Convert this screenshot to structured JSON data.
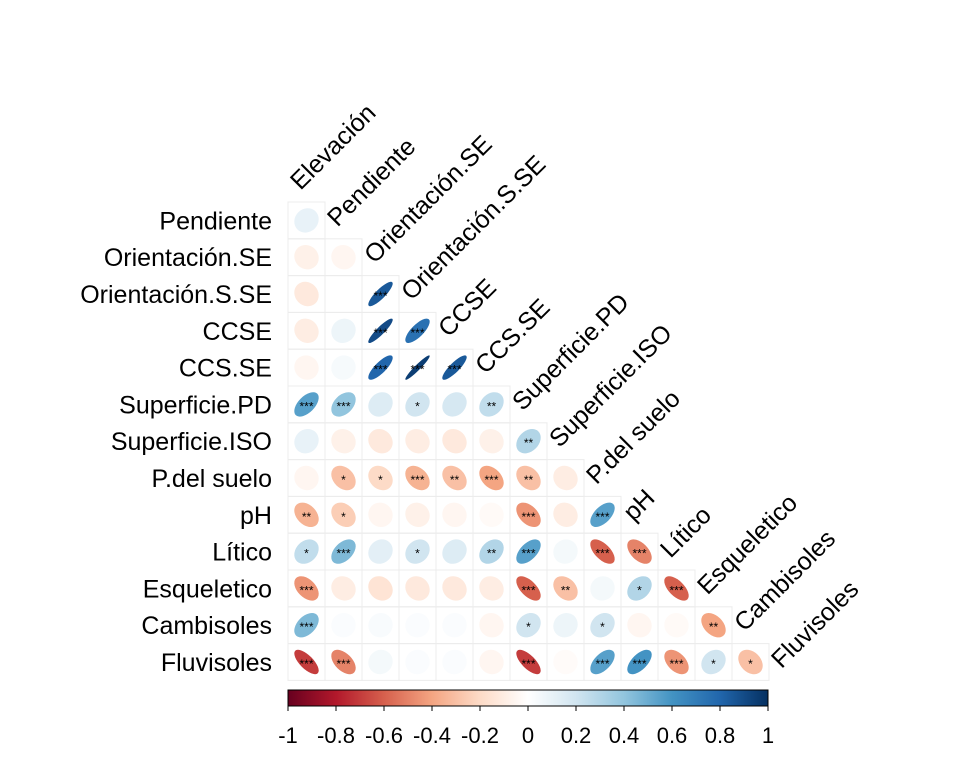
{
  "chart_data": {
    "type": "heatmap",
    "variables": [
      "Elevación",
      "Pendiente",
      "Orientación.SE",
      "Orientación.S.SE",
      "CCSE",
      "CCS.SE",
      "Superficie.PD",
      "Superficie.ISO",
      "P.del suelo",
      "pH",
      "Lítico",
      "Esqueletico",
      "Cambisoles",
      "Fluvisoles"
    ],
    "cells": [
      {
        "row": "Pendiente",
        "col": "Elevación",
        "r": 0.1,
        "sig": ""
      },
      {
        "row": "Orientación.SE",
        "col": "Elevación",
        "r": -0.08,
        "sig": ""
      },
      {
        "row": "Orientación.SE",
        "col": "Pendiente",
        "r": -0.05,
        "sig": ""
      },
      {
        "row": "Orientación.S.SE",
        "col": "Elevación",
        "r": -0.12,
        "sig": ""
      },
      {
        "row": "Orientación.S.SE",
        "col": "Pendiente",
        "r": 0.0,
        "sig": ""
      },
      {
        "row": "Orientación.S.SE",
        "col": "Orientación.SE",
        "r": 0.85,
        "sig": "***"
      },
      {
        "row": "CCSE",
        "col": "Elevación",
        "r": -0.1,
        "sig": ""
      },
      {
        "row": "CCSE",
        "col": "Pendiente",
        "r": 0.08,
        "sig": ""
      },
      {
        "row": "CCSE",
        "col": "Orientación.SE",
        "r": 0.9,
        "sig": "***"
      },
      {
        "row": "CCSE",
        "col": "Orientación.S.SE",
        "r": 0.75,
        "sig": "***"
      },
      {
        "row": "CCS.SE",
        "col": "Elevación",
        "r": -0.05,
        "sig": ""
      },
      {
        "row": "CCS.SE",
        "col": "Pendiente",
        "r": 0.04,
        "sig": ""
      },
      {
        "row": "CCS.SE",
        "col": "Orientación.SE",
        "r": 0.8,
        "sig": "***"
      },
      {
        "row": "CCS.SE",
        "col": "Orientación.S.SE",
        "r": 0.95,
        "sig": "***"
      },
      {
        "row": "CCS.SE",
        "col": "CCSE",
        "r": 0.85,
        "sig": "***"
      },
      {
        "row": "Superficie.PD",
        "col": "Elevación",
        "r": 0.55,
        "sig": "***"
      },
      {
        "row": "Superficie.PD",
        "col": "Pendiente",
        "r": 0.4,
        "sig": "***"
      },
      {
        "row": "Superficie.PD",
        "col": "Orientación.SE",
        "r": 0.15,
        "sig": ""
      },
      {
        "row": "Superficie.PD",
        "col": "Orientación.S.SE",
        "r": 0.2,
        "sig": "*"
      },
      {
        "row": "Superficie.PD",
        "col": "CCSE",
        "r": 0.18,
        "sig": ""
      },
      {
        "row": "Superficie.PD",
        "col": "CCS.SE",
        "r": 0.25,
        "sig": "**"
      },
      {
        "row": "Superficie.ISO",
        "col": "Elevación",
        "r": 0.1,
        "sig": ""
      },
      {
        "row": "Superficie.ISO",
        "col": "Pendiente",
        "r": -0.08,
        "sig": ""
      },
      {
        "row": "Superficie.ISO",
        "col": "Orientación.SE",
        "r": -0.12,
        "sig": ""
      },
      {
        "row": "Superficie.ISO",
        "col": "Orientación.S.SE",
        "r": -0.1,
        "sig": ""
      },
      {
        "row": "Superficie.ISO",
        "col": "CCSE",
        "r": -0.12,
        "sig": ""
      },
      {
        "row": "Superficie.ISO",
        "col": "CCS.SE",
        "r": -0.08,
        "sig": ""
      },
      {
        "row": "Superficie.ISO",
        "col": "Superficie.PD",
        "r": 0.3,
        "sig": "**"
      },
      {
        "row": "P.del suelo",
        "col": "Elevación",
        "r": -0.05,
        "sig": ""
      },
      {
        "row": "P.del suelo",
        "col": "Pendiente",
        "r": -0.3,
        "sig": "*"
      },
      {
        "row": "P.del suelo",
        "col": "Orientación.SE",
        "r": -0.2,
        "sig": "*"
      },
      {
        "row": "P.del suelo",
        "col": "Orientación.S.SE",
        "r": -0.35,
        "sig": "***"
      },
      {
        "row": "P.del suelo",
        "col": "CCSE",
        "r": -0.3,
        "sig": "**"
      },
      {
        "row": "P.del suelo",
        "col": "CCS.SE",
        "r": -0.4,
        "sig": "***"
      },
      {
        "row": "P.del suelo",
        "col": "Superficie.PD",
        "r": -0.3,
        "sig": "**"
      },
      {
        "row": "P.del suelo",
        "col": "Superficie.ISO",
        "r": -0.1,
        "sig": ""
      },
      {
        "row": "pH",
        "col": "Elevación",
        "r": -0.35,
        "sig": "**"
      },
      {
        "row": "pH",
        "col": "Pendiente",
        "r": -0.25,
        "sig": "*"
      },
      {
        "row": "pH",
        "col": "Orientación.SE",
        "r": -0.05,
        "sig": ""
      },
      {
        "row": "pH",
        "col": "Orientación.S.SE",
        "r": -0.08,
        "sig": ""
      },
      {
        "row": "pH",
        "col": "CCSE",
        "r": -0.05,
        "sig": ""
      },
      {
        "row": "pH",
        "col": "CCS.SE",
        "r": -0.03,
        "sig": ""
      },
      {
        "row": "pH",
        "col": "Superficie.PD",
        "r": -0.45,
        "sig": "***"
      },
      {
        "row": "pH",
        "col": "Superficie.ISO",
        "r": -0.1,
        "sig": ""
      },
      {
        "row": "pH",
        "col": "P.del suelo",
        "r": 0.55,
        "sig": "***"
      },
      {
        "row": "Lítico",
        "col": "Elevación",
        "r": 0.25,
        "sig": "*"
      },
      {
        "row": "Lítico",
        "col": "Pendiente",
        "r": 0.45,
        "sig": "***"
      },
      {
        "row": "Lítico",
        "col": "Orientación.SE",
        "r": 0.12,
        "sig": ""
      },
      {
        "row": "Lítico",
        "col": "Orientación.S.SE",
        "r": 0.2,
        "sig": "*"
      },
      {
        "row": "Lítico",
        "col": "CCSE",
        "r": 0.15,
        "sig": ""
      },
      {
        "row": "Lítico",
        "col": "CCS.SE",
        "r": 0.3,
        "sig": "**"
      },
      {
        "row": "Lítico",
        "col": "Superficie.PD",
        "r": 0.55,
        "sig": "***"
      },
      {
        "row": "Lítico",
        "col": "Superficie.ISO",
        "r": 0.05,
        "sig": ""
      },
      {
        "row": "Lítico",
        "col": "P.del suelo",
        "r": -0.6,
        "sig": "***"
      },
      {
        "row": "Lítico",
        "col": "pH",
        "r": -0.5,
        "sig": "***"
      },
      {
        "row": "Esqueletico",
        "col": "Elevación",
        "r": -0.45,
        "sig": "***"
      },
      {
        "row": "Esqueletico",
        "col": "Pendiente",
        "r": -0.1,
        "sig": ""
      },
      {
        "row": "Esqueletico",
        "col": "Orientación.SE",
        "r": -0.15,
        "sig": ""
      },
      {
        "row": "Esqueletico",
        "col": "Orientación.S.SE",
        "r": -0.12,
        "sig": ""
      },
      {
        "row": "Esqueletico",
        "col": "CCSE",
        "r": -0.12,
        "sig": ""
      },
      {
        "row": "Esqueletico",
        "col": "CCS.SE",
        "r": -0.1,
        "sig": ""
      },
      {
        "row": "Esqueletico",
        "col": "Superficie.PD",
        "r": -0.6,
        "sig": "***"
      },
      {
        "row": "Esqueletico",
        "col": "Superficie.ISO",
        "r": -0.3,
        "sig": "**"
      },
      {
        "row": "Esqueletico",
        "col": "P.del suelo",
        "r": 0.05,
        "sig": ""
      },
      {
        "row": "Esqueletico",
        "col": "pH",
        "r": 0.3,
        "sig": "*"
      },
      {
        "row": "Esqueletico",
        "col": "Lítico",
        "r": -0.6,
        "sig": "***"
      },
      {
        "row": "Cambisoles",
        "col": "Elevación",
        "r": 0.45,
        "sig": "***"
      },
      {
        "row": "Cambisoles",
        "col": "Pendiente",
        "r": 0.02,
        "sig": ""
      },
      {
        "row": "Cambisoles",
        "col": "Orientación.SE",
        "r": 0.03,
        "sig": ""
      },
      {
        "row": "Cambisoles",
        "col": "Orientación.S.SE",
        "r": 0.02,
        "sig": ""
      },
      {
        "row": "Cambisoles",
        "col": "CCSE",
        "r": 0.02,
        "sig": ""
      },
      {
        "row": "Cambisoles",
        "col": "CCS.SE",
        "r": -0.05,
        "sig": ""
      },
      {
        "row": "Cambisoles",
        "col": "Superficie.PD",
        "r": 0.2,
        "sig": "*"
      },
      {
        "row": "Cambisoles",
        "col": "Superficie.ISO",
        "r": 0.08,
        "sig": ""
      },
      {
        "row": "Cambisoles",
        "col": "P.del suelo",
        "r": 0.2,
        "sig": "*"
      },
      {
        "row": "Cambisoles",
        "col": "pH",
        "r": -0.05,
        "sig": ""
      },
      {
        "row": "Cambisoles",
        "col": "Lítico",
        "r": -0.03,
        "sig": ""
      },
      {
        "row": "Cambisoles",
        "col": "Esqueletico",
        "r": -0.4,
        "sig": "**"
      },
      {
        "row": "Fluvisoles",
        "col": "Elevación",
        "r": -0.7,
        "sig": "***"
      },
      {
        "row": "Fluvisoles",
        "col": "Pendiente",
        "r": -0.5,
        "sig": "***"
      },
      {
        "row": "Fluvisoles",
        "col": "Orientación.SE",
        "r": 0.05,
        "sig": ""
      },
      {
        "row": "Fluvisoles",
        "col": "Orientación.S.SE",
        "r": 0.02,
        "sig": ""
      },
      {
        "row": "Fluvisoles",
        "col": "CCSE",
        "r": 0.02,
        "sig": ""
      },
      {
        "row": "Fluvisoles",
        "col": "CCS.SE",
        "r": -0.05,
        "sig": ""
      },
      {
        "row": "Fluvisoles",
        "col": "Superficie.PD",
        "r": -0.7,
        "sig": "***"
      },
      {
        "row": "Fluvisoles",
        "col": "Superficie.ISO",
        "r": -0.02,
        "sig": ""
      },
      {
        "row": "Fluvisoles",
        "col": "P.del suelo",
        "r": 0.55,
        "sig": "***"
      },
      {
        "row": "Fluvisoles",
        "col": "pH",
        "r": 0.6,
        "sig": "***"
      },
      {
        "row": "Fluvisoles",
        "col": "Lítico",
        "r": -0.45,
        "sig": "***"
      },
      {
        "row": "Fluvisoles",
        "col": "Esqueletico",
        "r": 0.2,
        "sig": "*"
      },
      {
        "row": "Fluvisoles",
        "col": "Cambisoles",
        "r": -0.3,
        "sig": "*"
      }
    ],
    "colorbar": {
      "range": [
        -1,
        1
      ],
      "ticks": [
        "-1",
        "-0.8",
        "-0.6",
        "-0.4",
        "-0.2",
        "0",
        "0.2",
        "0.4",
        "0.6",
        "0.8",
        "1"
      ],
      "colors": [
        "#67001F",
        "#B2182B",
        "#D6604D",
        "#F4A582",
        "#FDDBC7",
        "#FFFFFF",
        "#D1E5F0",
        "#92C5DE",
        "#4393C3",
        "#2166AC",
        "#053061"
      ]
    },
    "grid": true,
    "legend": "bottom"
  }
}
